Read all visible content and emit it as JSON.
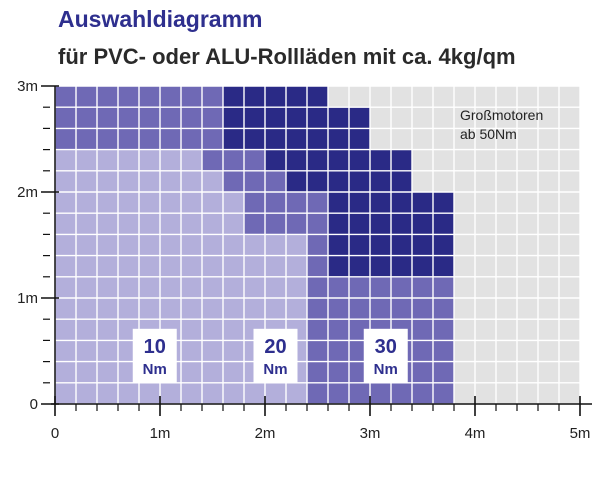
{
  "chart_data": {
    "type": "heatmap",
    "title": "Auswahldiagramm",
    "subtitle": "für PVC- oder ALU-Rollläden mit ca. 4kg/qm",
    "xlabel": "",
    "ylabel": "",
    "x_unit": "m",
    "y_unit": "m",
    "xlim": [
      0,
      5
    ],
    "ylim": [
      0,
      3
    ],
    "cell_size_m": 0.2,
    "x_ticks": [
      {
        "value": 0,
        "label": "0"
      },
      {
        "value": 1,
        "label": "1m"
      },
      {
        "value": 2,
        "label": "2m"
      },
      {
        "value": 3,
        "label": "3m"
      },
      {
        "value": 4,
        "label": "4m"
      },
      {
        "value": 5,
        "label": "5m"
      }
    ],
    "y_ticks": [
      {
        "value": 0,
        "label": "0"
      },
      {
        "value": 1,
        "label": "1m"
      },
      {
        "value": 2,
        "label": "2m"
      },
      {
        "value": 3,
        "label": "3m"
      }
    ],
    "grid": true,
    "columns_max_height": {
      "description": "Maximum shutter height (m) per width column of 0.2 m, indexed by column start width",
      "x_start": [
        0,
        0.2,
        0.4,
        0.6,
        0.8,
        1.0,
        1.2,
        1.4,
        1.6,
        1.8,
        2.0,
        2.2,
        2.4,
        2.6,
        2.8,
        3.0,
        3.2,
        3.4,
        3.6
      ],
      "motor_10": [
        2.4,
        2.4,
        2.4,
        2.4,
        2.4,
        2.4,
        2.4,
        2.2,
        2.0,
        1.6,
        1.6,
        1.6,
        0,
        0,
        0,
        0,
        0,
        0,
        0
      ],
      "motor_20": [
        3.0,
        3.0,
        3.0,
        3.0,
        3.0,
        3.0,
        3.0,
        3.0,
        2.4,
        2.4,
        2.2,
        2.0,
        2.0,
        1.2,
        1.2,
        1.2,
        1.2,
        1.2,
        1.2
      ],
      "motor_30": [
        0,
        0,
        0,
        0,
        0,
        0,
        0,
        0,
        3.0,
        3.0,
        3.0,
        3.0,
        3.0,
        2.8,
        2.8,
        2.4,
        2.4,
        2.0,
        2.0
      ]
    },
    "series": [
      {
        "name": "10 Nm",
        "line1": "10",
        "line2": "Nm",
        "color": "#b3afdb",
        "label_x": 0.95
      },
      {
        "name": "20 Nm",
        "line1": "20",
        "line2": "Nm",
        "color": "#6f69b5",
        "label_x": 2.1
      },
      {
        "name": "30 Nm",
        "line1": "30",
        "line2": "Nm",
        "color": "#2a2a86",
        "label_x": 3.15
      }
    ],
    "background_color": "#e2e2e2",
    "label_color": "#2e2f8e",
    "annotation": {
      "line1": "Großmotoren",
      "line2": "ab 50Nm"
    }
  }
}
